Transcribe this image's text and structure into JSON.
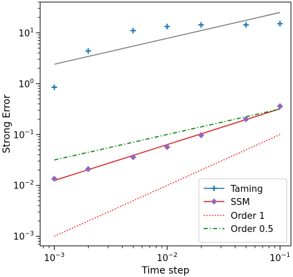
{
  "chart_data": {
    "type": "scatter",
    "title": "",
    "xlabel": "Time step",
    "ylabel": "Strong Error",
    "xscale": "log",
    "yscale": "log",
    "xlim": [
      0.00075,
      0.125
    ],
    "ylim": [
      0.00065,
      40
    ],
    "grid": false,
    "legend_position": "bottom-right",
    "x_ticks": [
      {
        "value": 0.001,
        "base": "10",
        "exp": "−3"
      },
      {
        "value": 0.01,
        "base": "10",
        "exp": "−2"
      },
      {
        "value": 0.1,
        "base": "10",
        "exp": "−1"
      }
    ],
    "y_ticks": [
      {
        "value": 0.001,
        "base": "10",
        "exp": "−3"
      },
      {
        "value": 0.01,
        "base": "10",
        "exp": "−2"
      },
      {
        "value": 0.1,
        "base": "10",
        "exp": "−1"
      },
      {
        "value": 1,
        "base": "10",
        "exp": "0"
      },
      {
        "value": 10,
        "base": "10",
        "exp": "1"
      }
    ],
    "series": [
      {
        "name": "Taming",
        "color": "#1f77b4",
        "marker": "plus",
        "line_color": "#808080",
        "x": [
          0.001,
          0.002,
          0.005,
          0.01,
          0.02,
          0.05,
          0.1
        ],
        "y": [
          0.85,
          4.4,
          11.0,
          13.2,
          14.2,
          14.3,
          15.0
        ],
        "fit_line": {
          "x": [
            0.001,
            0.1
          ],
          "y": [
            2.4,
            25.0
          ]
        }
      },
      {
        "name": "SSM",
        "color": "#9467bd",
        "marker": "diamond",
        "line_color": "#d62728",
        "x": [
          0.001,
          0.002,
          0.005,
          0.01,
          0.02,
          0.05,
          0.1
        ],
        "y": [
          0.0135,
          0.021,
          0.036,
          0.057,
          0.097,
          0.2,
          0.36
        ],
        "fit_line": {
          "x": [
            0.001,
            0.1
          ],
          "y": [
            0.0125,
            0.32
          ]
        }
      },
      {
        "name": "Order 1",
        "color": "#ff0000",
        "style": "dotted",
        "x": [
          0.001,
          0.1
        ],
        "y": [
          0.001,
          0.1
        ]
      },
      {
        "name": "Order 0.5",
        "color": "#008000",
        "style": "dashdot",
        "x": [
          0.001,
          0.1
        ],
        "y": [
          0.0316,
          0.316
        ]
      }
    ]
  }
}
